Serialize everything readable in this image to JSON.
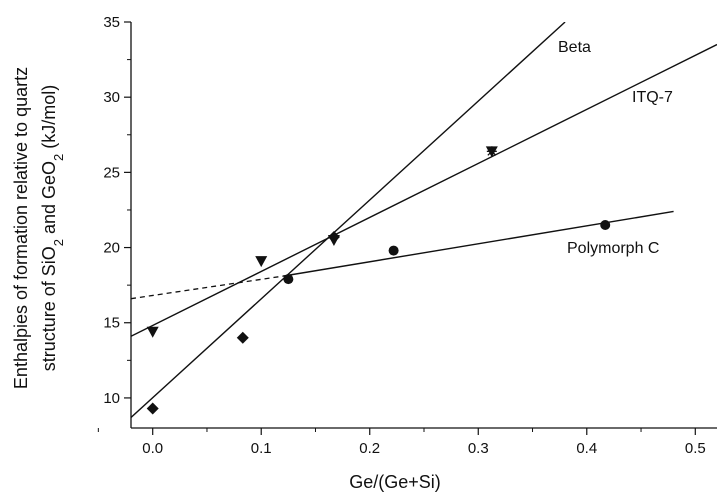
{
  "chart_data": {
    "type": "scatter",
    "xlabel": "Ge/(Ge+Si)",
    "ylabel_line1": "Enthalpies of formation relative to quartz",
    "ylabel_line2_parts": [
      "structure of SiO",
      "2",
      " and GeO",
      "2",
      " (kJ/mol)"
    ],
    "xlim": [
      -0.02,
      0.52
    ],
    "ylim": [
      8,
      35
    ],
    "xticks": [
      "0.0",
      "0.1",
      "0.2",
      "0.3",
      "0.4",
      "0.5"
    ],
    "yticks": [
      "10",
      "15",
      "20",
      "25",
      "30",
      "35"
    ],
    "grid": false,
    "series": [
      {
        "name": "Beta",
        "marker": "diamond",
        "points": [
          [
            0.0,
            9.3
          ],
          [
            0.083,
            14.0
          ],
          [
            0.167,
            20.7
          ]
        ],
        "fit": [
          [
            -0.02,
            8.7
          ],
          [
            0.38,
            35.0
          ]
        ]
      },
      {
        "name": "ITQ-7",
        "marker": "triangle-down",
        "points": [
          [
            0.0,
            14.4
          ],
          [
            0.1,
            19.1
          ],
          [
            0.167,
            20.5
          ],
          [
            0.3125,
            26.4
          ]
        ],
        "fit": [
          [
            -0.02,
            14.1
          ],
          [
            0.52,
            33.5
          ]
        ]
      },
      {
        "name": "Polymorph C",
        "marker": "circle",
        "points": [
          [
            0.125,
            17.9
          ],
          [
            0.222,
            19.8
          ],
          [
            0.417,
            21.5
          ]
        ],
        "fit": [
          [
            0.12,
            18.1
          ],
          [
            0.48,
            22.4
          ]
        ],
        "extrapolation": [
          [
            -0.02,
            16.6
          ],
          [
            0.12,
            18.1
          ]
        ]
      }
    ]
  }
}
